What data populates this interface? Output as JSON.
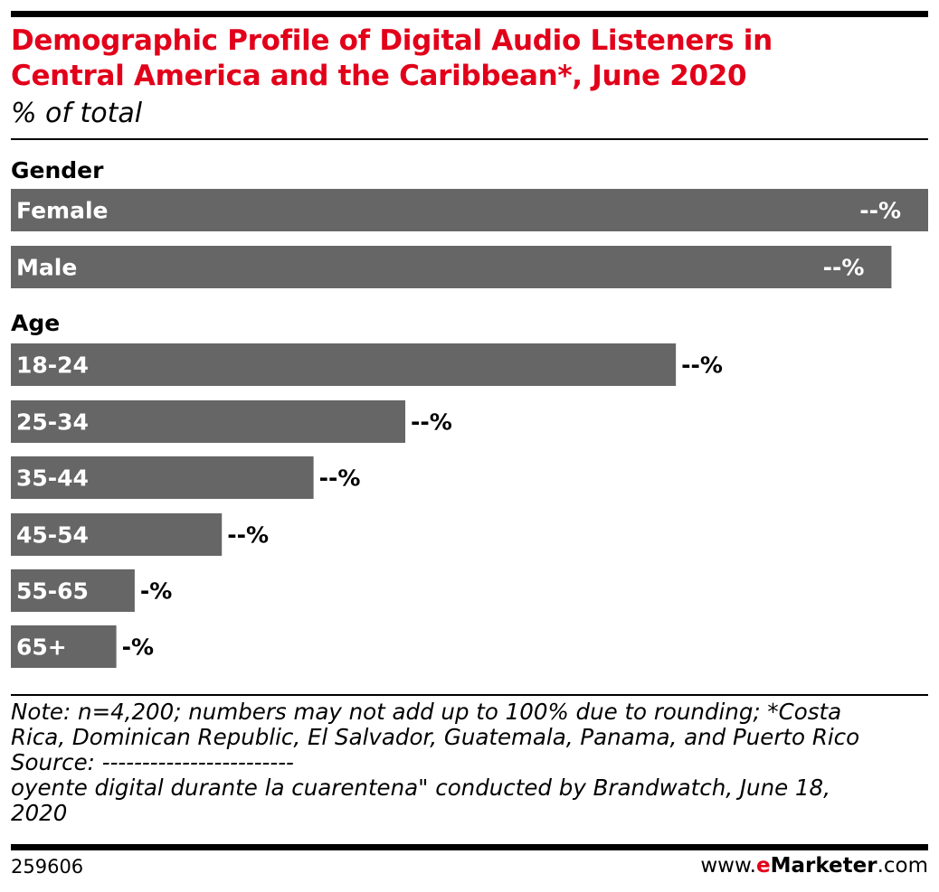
{
  "header": {
    "title_line1": "Demographic Profile of Digital Audio Listeners in",
    "title_line2": "Central America and the Caribbean*, June 2020",
    "subtitle": "% of total"
  },
  "chart_data": {
    "type": "bar",
    "orientation": "horizontal",
    "groups": [
      {
        "name": "Gender",
        "categories": [
          "Female",
          "Male"
        ],
        "values": [
          100,
          96
        ],
        "labels": [
          "--%",
          "--%"
        ]
      },
      {
        "name": "Age",
        "categories": [
          "18-24",
          "25-34",
          "35-44",
          "45-54",
          "55-65",
          "65+"
        ],
        "values": [
          72.5,
          43,
          33,
          23,
          13.5,
          11.5
        ],
        "labels": [
          "--%",
          "--%",
          "--%",
          "--%",
          "-%",
          "-%"
        ]
      }
    ],
    "bar_color": "#666666",
    "grid": false,
    "legend": "none"
  },
  "notes": {
    "line1": "Note: n=4,200; numbers may not add up to 100% due to rounding; *Costa",
    "line2": "Rica, Dominican Republic, El Salvador, Guatemala, Panama, and Puerto Rico",
    "line3": "Source: ------------------------",
    "line4": "oyente digital durante la cuarentena\" conducted by Brandwatch, June 18,",
    "line5": "2020"
  },
  "footer": {
    "chart_id": "259606",
    "brand_prefix": "www.",
    "brand_e": "e",
    "brand_name": "Marketer",
    "brand_suffix": ".com"
  },
  "colors": {
    "title": "#e2001a",
    "bar": "#666666",
    "inside_label": "#ffffff",
    "outside_label": "#000000"
  }
}
